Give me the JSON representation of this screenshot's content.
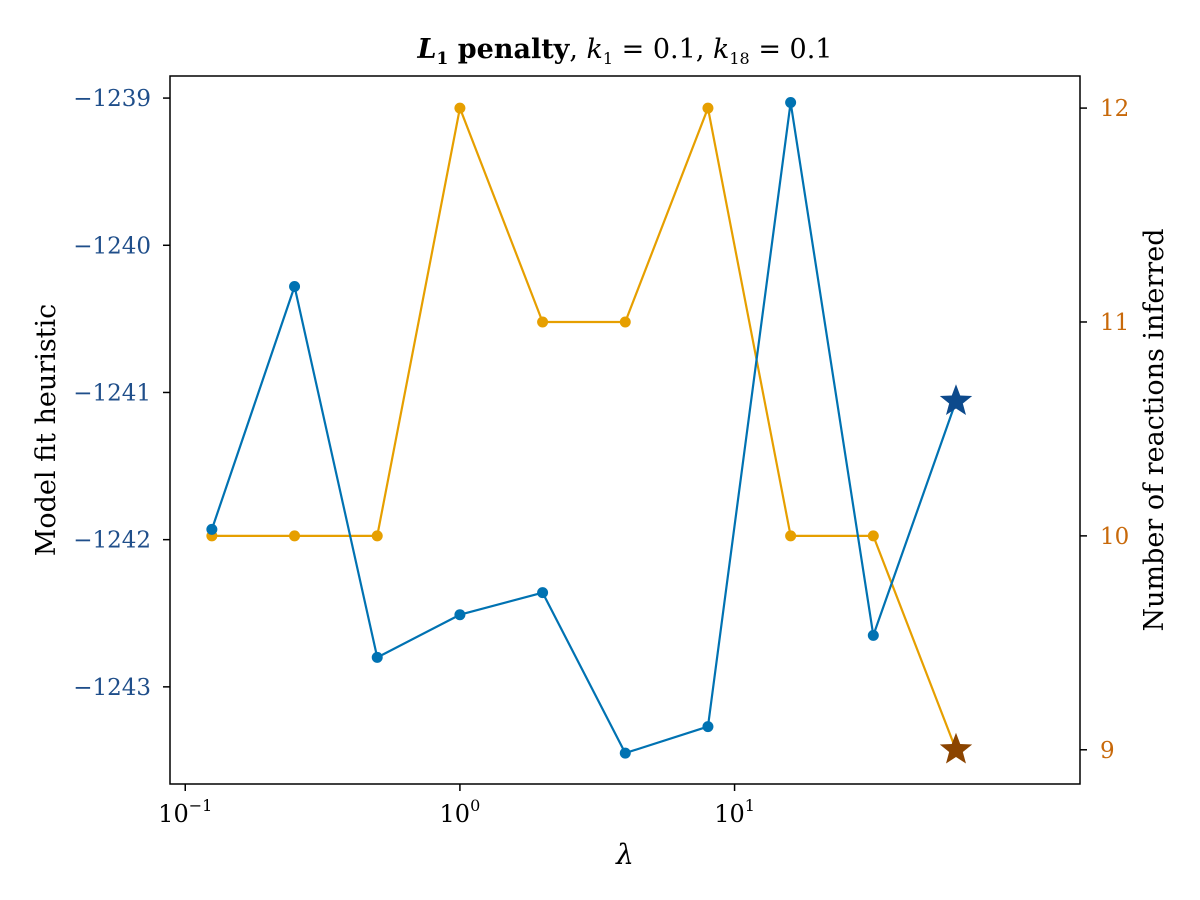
{
  "chart_data": {
    "type": "line",
    "title": {
      "prefix_main": "L",
      "prefix_sub": "1",
      "bold_rest": " penalty",
      "sep1": ", ",
      "k1_main": "k",
      "k1_sub": "1",
      "k1_value": " = 0.1",
      "sep2": ", ",
      "k18_main": "k",
      "k18_sub": "18",
      "k18_value": " = 0.1"
    },
    "xlabel": "λ",
    "ylabel_left": "Model fit heuristic",
    "ylabel_right": "Number of reactions inferred",
    "xscale": "log",
    "xlim": [
      0.088,
      181
    ],
    "ylim_left": [
      -1243.66,
      -1238.85
    ],
    "ylim_right": [
      8.84,
      12.15
    ],
    "x_ticks": [
      {
        "value": 0.1,
        "base": "10",
        "exp": "−1"
      },
      {
        "value": 1,
        "base": "10",
        "exp": "0"
      },
      {
        "value": 10,
        "base": "10",
        "exp": "1"
      }
    ],
    "y_ticks_left": [
      {
        "value": -1239,
        "label": "−1239"
      },
      {
        "value": -1240,
        "label": "−1240"
      },
      {
        "value": -1241,
        "label": "−1241"
      },
      {
        "value": -1242,
        "label": "−1242"
      },
      {
        "value": -1243,
        "label": "−1243"
      }
    ],
    "y_ticks_right": [
      {
        "value": 12,
        "label": "12"
      },
      {
        "value": 11,
        "label": "11"
      },
      {
        "value": 10,
        "label": "10"
      },
      {
        "value": 9,
        "label": "9"
      }
    ],
    "x": [
      0.125,
      0.25,
      0.5,
      1,
      2,
      4,
      8,
      16,
      32,
      64
    ],
    "series": [
      {
        "axis": "left",
        "color": "#0072B2",
        "marker_color": "#0072B2",
        "values": [
          -1241.93,
          -1240.28,
          -1242.8,
          -1242.51,
          -1242.36,
          -1243.45,
          -1243.27,
          -1239.03,
          -1242.65,
          -1241.06
        ],
        "highlight": {
          "x": 64,
          "y": -1241.06,
          "color": "#0D4A8C"
        }
      },
      {
        "axis": "right",
        "color": "#E69F00",
        "marker_color": "#E69F00",
        "values": [
          10,
          10,
          10,
          12,
          11,
          11,
          12,
          10,
          10,
          9
        ],
        "highlight": {
          "x": 64,
          "y": 9,
          "color": "#8B4400"
        }
      }
    ],
    "colors": {
      "left_tick_label": "#1f4e8a",
      "right_tick_label": "#c8690a",
      "frame": "#000000"
    },
    "grid": false
  }
}
